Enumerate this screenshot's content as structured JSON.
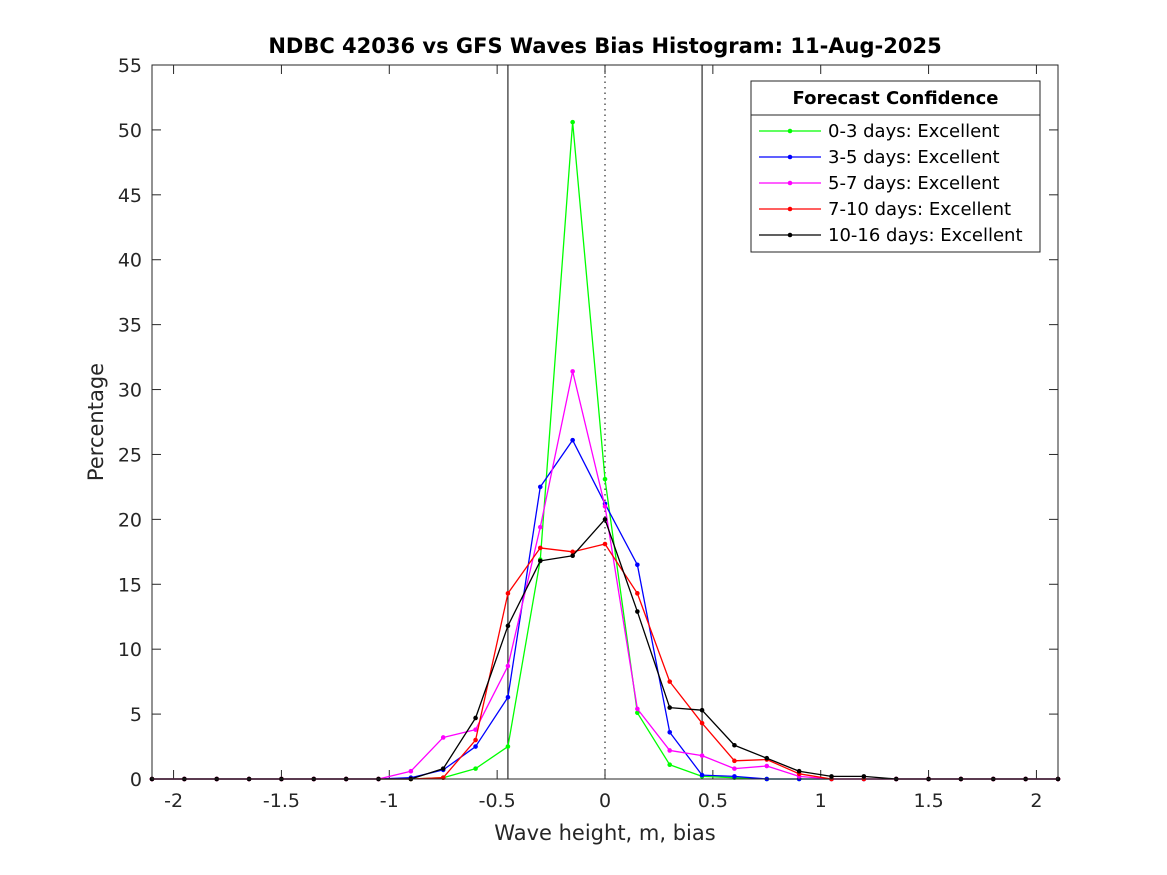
{
  "chart_data": {
    "type": "line",
    "title": "NDBC 42036 vs GFS Waves Bias Histogram: 11-Aug-2025",
    "xlabel": "Wave height, m, bias",
    "ylabel": "Percentage",
    "xlim": [
      -2.1,
      2.1
    ],
    "ylim": [
      0,
      55
    ],
    "xticks": [
      -2,
      -1.5,
      -1,
      -0.5,
      0,
      0.5,
      1,
      1.5,
      2
    ],
    "xtick_labels": [
      "-2",
      "-1.5",
      "-1",
      "-0.5",
      "0",
      "0.5",
      "1",
      "1.5",
      "2"
    ],
    "yticks": [
      0,
      5,
      10,
      15,
      20,
      25,
      30,
      35,
      40,
      45,
      50,
      55
    ],
    "ytick_labels": [
      "0",
      "5",
      "10",
      "15",
      "20",
      "25",
      "30",
      "35",
      "40",
      "45",
      "50",
      "55"
    ],
    "reference_lines": {
      "solid": [
        -0.45,
        0.45
      ],
      "dotted": [
        0
      ]
    },
    "legend_title": "Forecast Confidence",
    "legend_position": "top-right",
    "x": [
      -2.1,
      -1.95,
      -1.8,
      -1.65,
      -1.5,
      -1.35,
      -1.2,
      -1.05,
      -0.9,
      -0.75,
      -0.6,
      -0.45,
      -0.3,
      -0.15,
      0,
      0.15,
      0.3,
      0.45,
      0.6,
      0.75,
      0.9,
      1.05,
      1.2,
      1.35,
      1.5,
      1.65,
      1.8,
      1.95,
      2.1
    ],
    "series": [
      {
        "name": "0-3 days: Excellent",
        "color": "#00ff00",
        "values": [
          0,
          0,
          0,
          0,
          0,
          0,
          0,
          0,
          0,
          0.1,
          0.8,
          2.5,
          16.9,
          50.6,
          23.1,
          5.1,
          1.1,
          0.2,
          0.1,
          0,
          0,
          0,
          0,
          0,
          0,
          0,
          0,
          0,
          0
        ]
      },
      {
        "name": "3-5 days: Excellent",
        "color": "#0000ff",
        "values": [
          0,
          0,
          0,
          0,
          0,
          0,
          0,
          0,
          0.1,
          0.7,
          2.5,
          6.3,
          22.5,
          26.1,
          21.2,
          16.5,
          3.6,
          0.3,
          0.2,
          0,
          0,
          0,
          0,
          0,
          0,
          0,
          0,
          0,
          0
        ]
      },
      {
        "name": "5-7 days: Excellent",
        "color": "#ff00ff",
        "values": [
          0,
          0,
          0,
          0,
          0,
          0,
          0,
          0,
          0.6,
          3.2,
          3.8,
          8.7,
          19.4,
          31.4,
          21.0,
          5.4,
          2.2,
          1.8,
          0.8,
          1.0,
          0.2,
          0,
          0,
          0,
          0,
          0,
          0,
          0,
          0
        ]
      },
      {
        "name": "7-10 days: Excellent",
        "color": "#ff0000",
        "values": [
          0,
          0,
          0,
          0,
          0,
          0,
          0,
          0,
          0,
          0.1,
          3.0,
          14.3,
          17.8,
          17.5,
          18.1,
          14.3,
          7.5,
          4.3,
          1.4,
          1.5,
          0.4,
          0,
          0,
          0,
          0,
          0,
          0,
          0,
          0
        ]
      },
      {
        "name": "10-16 days: Excellent",
        "color": "#000000",
        "values": [
          0,
          0,
          0,
          0,
          0,
          0,
          0,
          0,
          0,
          0.8,
          4.7,
          11.8,
          16.8,
          17.2,
          20.0,
          12.9,
          5.5,
          5.3,
          2.6,
          1.6,
          0.6,
          0.2,
          0.2,
          0,
          0,
          0,
          0,
          0,
          0
        ]
      }
    ]
  }
}
